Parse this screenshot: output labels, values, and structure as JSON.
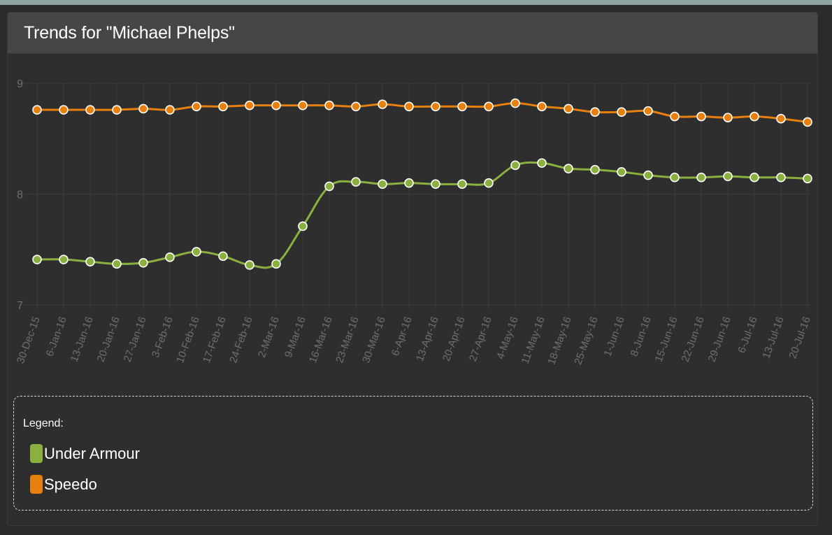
{
  "panel": {
    "title": "Trends for \"Michael Phelps\""
  },
  "legend": {
    "title": "Legend:"
  },
  "colors": {
    "background": "#2e2e2e",
    "grid": "#3a3a3a",
    "tick_text": "#6e6e6e",
    "point_stroke": "#ffffff"
  },
  "chart_data": {
    "type": "line",
    "title": "Trends for \"Michael Phelps\"",
    "xlabel": "",
    "ylabel": "",
    "ylim": [
      7,
      9
    ],
    "yticks": [
      7,
      8,
      9
    ],
    "grid": true,
    "legend_placement": "bottom",
    "categories": [
      "30-Dec-15",
      "6-Jan-16",
      "13-Jan-16",
      "20-Jan-16",
      "27-Jan-16",
      "3-Feb-16",
      "10-Feb-16",
      "17-Feb-16",
      "24-Feb-16",
      "2-Mar-16",
      "9-Mar-16",
      "16-Mar-16",
      "23-Mar-16",
      "30-Mar-16",
      "6-Apr-16",
      "13-Apr-16",
      "20-Apr-16",
      "27-Apr-16",
      "4-May-16",
      "11-May-16",
      "18-May-16",
      "25-May-16",
      "1-Jun-16",
      "8-Jun-16",
      "15-Jun-16",
      "22-Jun-16",
      "29-Jun-16",
      "6-Jul-16",
      "13-Jul-16",
      "20-Jul-16"
    ],
    "series": [
      {
        "name": "Under Armour",
        "color": "#8ab040",
        "values": [
          7.41,
          7.41,
          7.39,
          7.37,
          7.38,
          7.43,
          7.48,
          7.44,
          7.36,
          7.37,
          7.71,
          8.07,
          8.11,
          8.09,
          8.1,
          8.09,
          8.09,
          8.1,
          8.26,
          8.28,
          8.23,
          8.22,
          8.2,
          8.17,
          8.15,
          8.15,
          8.16,
          8.15,
          8.15,
          8.14
        ]
      },
      {
        "name": "Speedo",
        "color": "#e8800f",
        "values": [
          8.76,
          8.76,
          8.76,
          8.76,
          8.77,
          8.76,
          8.79,
          8.79,
          8.8,
          8.8,
          8.8,
          8.8,
          8.79,
          8.81,
          8.79,
          8.79,
          8.79,
          8.79,
          8.82,
          8.79,
          8.77,
          8.74,
          8.74,
          8.75,
          8.7,
          8.7,
          8.69,
          8.7,
          8.68,
          8.65
        ]
      }
    ]
  }
}
